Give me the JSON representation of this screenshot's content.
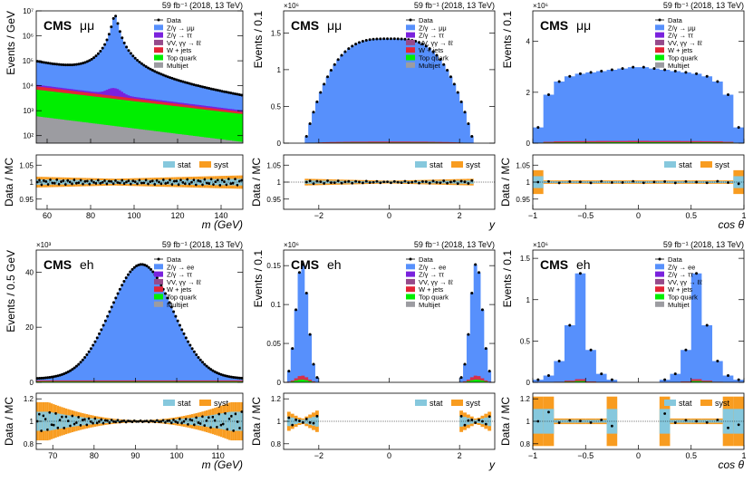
{
  "chart_data": [
    {
      "type": "bar",
      "id": "mm-mass",
      "cms_label": "CMS",
      "channel": "μμ",
      "lumi": "59 fb⁻¹ (2018, 13 TeV)",
      "ylabel": "Events / GeV",
      "xlabel": "m (GeV)",
      "yscale": "log",
      "ylim": [
        50,
        10000000
      ],
      "y_ticks": [
        "10²",
        "10³",
        "10⁴",
        "10⁵",
        "10⁶",
        "10⁷"
      ],
      "xlim": [
        55,
        150
      ],
      "x_ticks": [
        "60",
        "80",
        "100",
        "120",
        "140"
      ],
      "ratio_ylim": [
        0.92,
        1.08
      ],
      "ratio_ticks": [
        "0.95",
        "1",
        "1.05"
      ],
      "legend": [
        "Data",
        "Z/γ → μμ",
        "Z/γ → ττ",
        "VV, γγ → ℓℓ",
        "W + jets",
        "Top quark",
        "Multijet"
      ],
      "ratio_legend": [
        "stat",
        "syst"
      ]
    },
    {
      "type": "bar",
      "id": "mm-rapidity",
      "cms_label": "CMS",
      "channel": "μμ",
      "lumi": "59 fb⁻¹ (2018, 13 TeV)",
      "exponent": "×10⁶",
      "ylabel": "Events / 0.1",
      "xlabel": "y",
      "ylim": [
        0,
        1.8
      ],
      "y_ticks": [
        "0",
        "0.5",
        "1",
        "1.5"
      ],
      "xlim": [
        -3,
        3
      ],
      "x_ticks": [
        "−2",
        "0",
        "2"
      ],
      "peak": 1.4,
      "range": [
        -2.4,
        2.4
      ],
      "ratio_ylim": [
        0.92,
        1.08
      ],
      "ratio_ticks": [
        "0.95",
        "1",
        "1.05"
      ],
      "legend": [
        "Data",
        "Z/γ → μμ",
        "Z/γ → ττ",
        "VV, γγ → ℓℓ",
        "W + jets",
        "Top quark",
        "Multijet"
      ],
      "ratio_legend": [
        "stat",
        "syst"
      ]
    },
    {
      "type": "bar",
      "id": "mm-costheta",
      "cms_label": "CMS",
      "channel": "μμ",
      "lumi": "59 fb⁻¹ (2018, 13 TeV)",
      "exponent": "×10⁶",
      "ylabel": "Events / 0.1",
      "xlabel": "cos θ",
      "ylim": [
        0,
        5.2
      ],
      "y_ticks": [
        "0",
        "2",
        "4"
      ],
      "xlim": [
        -1,
        1
      ],
      "x_ticks": [
        "−1",
        "−0.5",
        "0",
        "0.5",
        "1"
      ],
      "values": [
        0.6,
        1.85,
        2.35,
        2.55,
        2.65,
        2.7,
        2.75,
        2.8,
        2.85,
        2.9,
        2.9,
        2.85,
        2.8,
        2.75,
        2.7,
        2.65,
        2.55,
        2.35,
        1.85,
        0.6
      ],
      "ratio_ylim": [
        0.92,
        1.08
      ],
      "ratio_ticks": [
        "0.95",
        "1",
        "1.05"
      ],
      "legend": [
        "Data",
        "Z/γ → μμ",
        "Z/γ → ττ",
        "VV, γγ → ℓℓ",
        "W + jets",
        "Top quark",
        "Multijet"
      ],
      "ratio_legend": [
        "stat",
        "syst"
      ]
    },
    {
      "type": "bar",
      "id": "eh-mass",
      "cms_label": "CMS",
      "channel": "eh",
      "lumi": "59 fb⁻¹ (2018, 13 TeV)",
      "exponent": "×10³",
      "ylabel": "Events / 0.5 GeV",
      "xlabel": "m (GeV)",
      "ylim": [
        0,
        48
      ],
      "y_ticks": [
        "0",
        "20",
        "40"
      ],
      "xlim": [
        66,
        116
      ],
      "x_ticks": [
        "70",
        "80",
        "90",
        "100",
        "110"
      ],
      "peak": 41.5,
      "peak_x": 91.5,
      "ratio_ylim": [
        0.75,
        1.25
      ],
      "ratio_ticks": [
        "0.8",
        "1",
        "1.2"
      ],
      "legend": [
        "Data",
        "Z/γ → ee",
        "Z/γ → ττ",
        "VV, γγ → ℓℓ",
        "W + jets",
        "Top quark",
        "Multijet"
      ],
      "ratio_legend": [
        "stat",
        "syst"
      ]
    },
    {
      "type": "bar",
      "id": "eh-rapidity",
      "cms_label": "CMS",
      "channel": "eh",
      "lumi": "59 fb⁻¹ (2018, 13 TeV)",
      "exponent": "×10⁶",
      "ylabel": "Events / 0.1",
      "xlabel": "y",
      "ylim": [
        0,
        0.17
      ],
      "y_ticks": [
        "0",
        "0.05",
        "0.1",
        "0.15"
      ],
      "xlim": [
        -3,
        3
      ],
      "x_ticks": [
        "−2",
        "0",
        "2"
      ],
      "peak": 0.145,
      "peak_x": [
        -2.5,
        2.5
      ],
      "ratio_ylim": [
        0.75,
        1.25
      ],
      "ratio_ticks": [
        "0.8",
        "1",
        "1.2"
      ],
      "legend": [
        "Data",
        "Z/γ → ee",
        "Z/γ → ττ",
        "VV, γγ → ℓℓ",
        "W + jets",
        "Top quark",
        "Multijet"
      ],
      "ratio_legend": [
        "stat",
        "syst"
      ]
    },
    {
      "type": "bar",
      "id": "eh-costheta",
      "cms_label": "CMS",
      "channel": "eh",
      "lumi": "59 fb⁻¹ (2018, 13 TeV)",
      "exponent": "×10⁶",
      "ylabel": "Events / 0.1",
      "xlabel": "cos θ",
      "ylim": [
        0,
        1.6
      ],
      "y_ticks": [
        "0",
        "0.5",
        "1",
        "1.5"
      ],
      "xlim": [
        -1,
        1
      ],
      "x_ticks": [
        "−1",
        "−0.5",
        "0",
        "0.5",
        "1"
      ],
      "values": [
        0.03,
        0.08,
        0.25,
        0.67,
        1.28,
        0.38,
        0.1,
        0.03,
        0,
        0,
        0,
        0,
        0.03,
        0.1,
        0.38,
        1.28,
        0.67,
        0.25,
        0.08,
        0.03
      ],
      "ratio_ylim": [
        0.75,
        1.25
      ],
      "ratio_ticks": [
        "0.8",
        "1",
        "1.2"
      ],
      "legend": [
        "Data",
        "Z/γ → ee",
        "Z/γ → ττ",
        "VV, γγ → ℓℓ",
        "W + jets",
        "Top quark",
        "Multijet"
      ],
      "ratio_legend": [
        "stat",
        "syst"
      ]
    }
  ],
  "colors": {
    "signal": "#5790fc",
    "tautau": "#7a21dd",
    "vv": "#964a8b",
    "wjets": "#e42536",
    "top": "#00ee00",
    "multijet": "#9c9ca1",
    "stat": "#86c8dd",
    "syst": "#f89c20"
  }
}
